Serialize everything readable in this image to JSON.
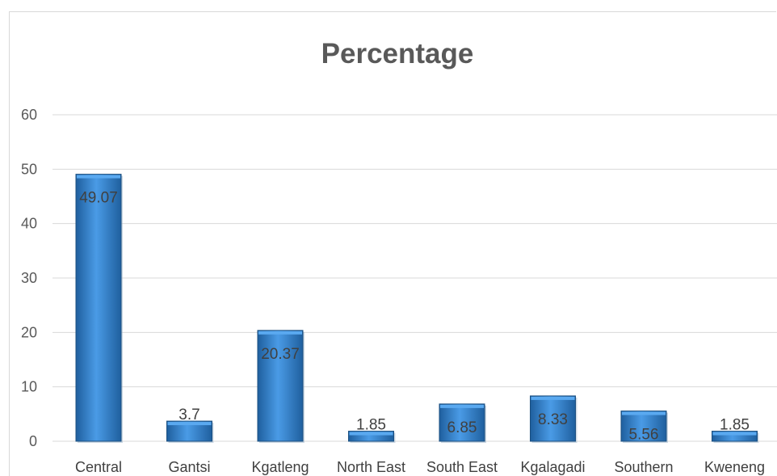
{
  "chart_data": {
    "type": "bar",
    "title": "Percentage",
    "categories": [
      "Central",
      "Gantsi",
      "Kgatleng",
      "North East",
      "South East",
      "Kgalagadi",
      "Southern",
      "Kweneng"
    ],
    "values": [
      49.07,
      3.7,
      20.37,
      1.85,
      6.85,
      8.33,
      5.56,
      1.85
    ],
    "data_labels": [
      "49.07",
      "3.7",
      "20.37",
      "1.85",
      "6.85",
      "8.33",
      "5.56",
      "1.85"
    ],
    "yticks": [
      "0",
      "10",
      "20",
      "30",
      "40",
      "50",
      "60"
    ],
    "ylim": [
      0,
      60
    ],
    "grid": true,
    "legend": "none",
    "bar_color": "#2e75b6",
    "bar_highlight": "#5aa9f0",
    "xlabel": "",
    "ylabel": ""
  }
}
